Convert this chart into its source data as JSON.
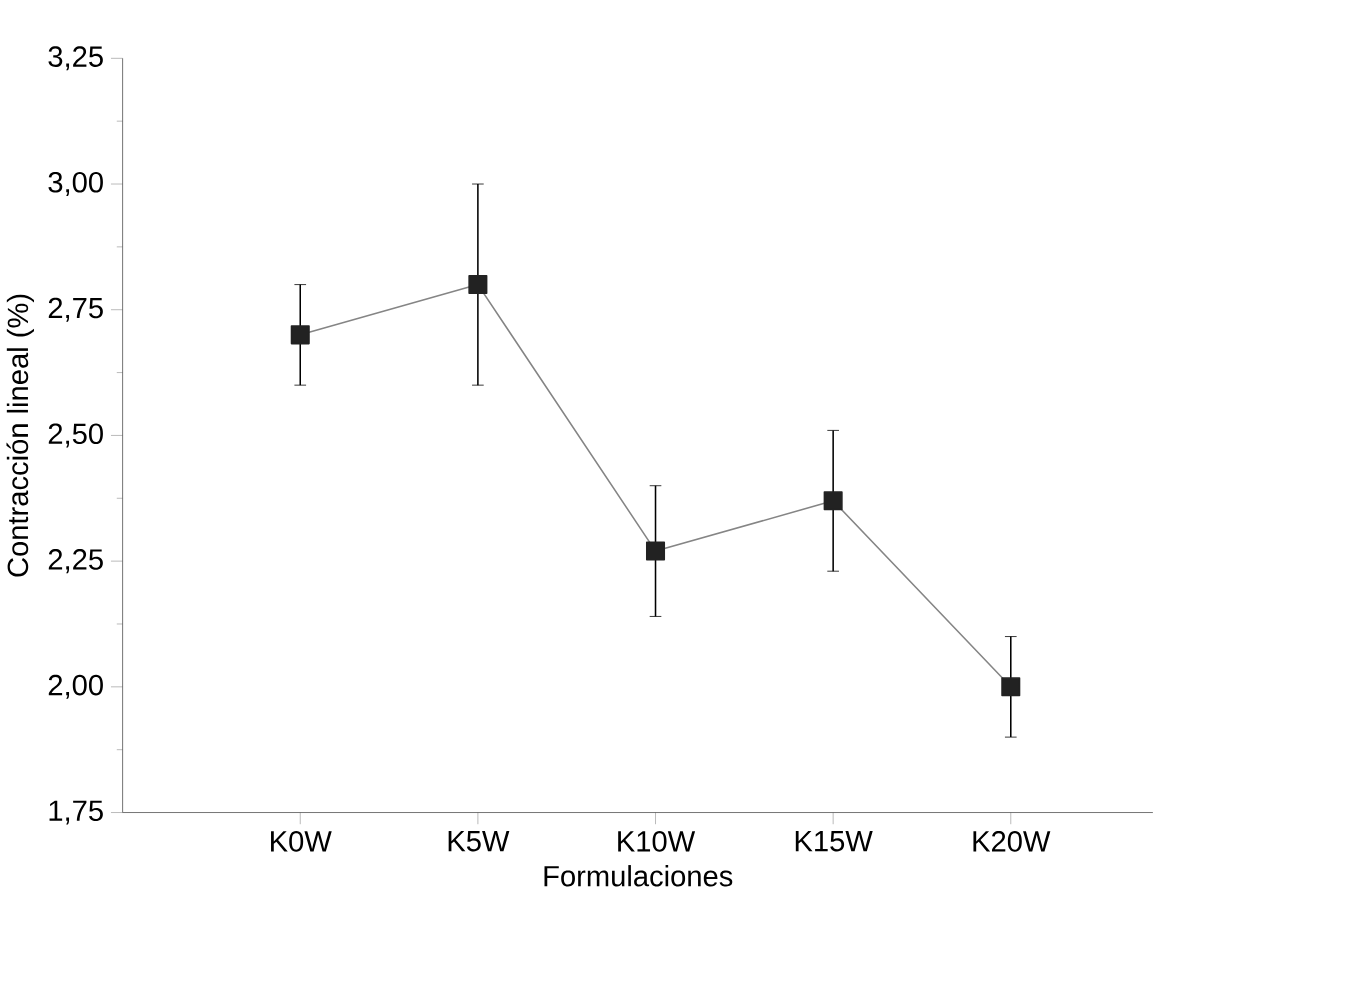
{
  "chart_data": {
    "type": "line",
    "xlabel": "Formulaciones",
    "ylabel": "Contracción lineal (%)",
    "categories": [
      "K0W",
      "K5W",
      "K10W",
      "K15W",
      "K20W"
    ],
    "series": [
      {
        "color": "#222222",
        "values": [
          2.7,
          2.8,
          2.27,
          2.37,
          2.0
        ],
        "errors": [
          [
            2.6,
            2.8
          ],
          [
            2.6,
            3.0
          ],
          [
            2.14,
            2.4
          ],
          [
            2.23,
            2.51
          ],
          [
            1.9,
            2.1
          ]
        ]
      }
    ],
    "ylim": [
      1.75,
      3.25
    ],
    "yticks": [
      {
        "value": 1.75,
        "label": "1,75"
      },
      {
        "value": 2.0,
        "label": "2,00"
      },
      {
        "value": 2.25,
        "label": "2,25"
      },
      {
        "value": 2.5,
        "label": "2,50"
      },
      {
        "value": 2.75,
        "label": "2,75"
      },
      {
        "value": 3.0,
        "label": "3,00"
      },
      {
        "value": 3.25,
        "label": "3,25"
      }
    ],
    "marker": "square",
    "line_style": "solid"
  }
}
